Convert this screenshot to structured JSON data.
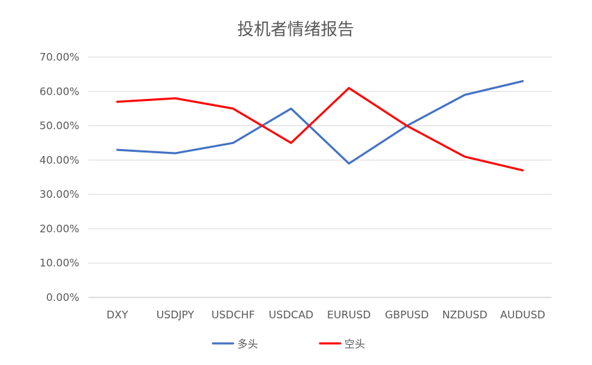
{
  "chart_data": {
    "type": "line",
    "title": "投机者情绪报告",
    "categories": [
      "DXY",
      "USDJPY",
      "USDCHF",
      "USDCAD",
      "EURUSD",
      "GBPUSD",
      "NZDUSD",
      "AUDUSD"
    ],
    "ylim": [
      0,
      0.7
    ],
    "yticks": [
      "0.00%",
      "10.00%",
      "20.00%",
      "30.00%",
      "40.00%",
      "50.00%",
      "60.00%",
      "70.00%"
    ],
    "grid": true,
    "legend_position": "bottom",
    "series": [
      {
        "name": "多头",
        "color": "#4472C4",
        "values": [
          0.43,
          0.42,
          0.45,
          0.55,
          0.39,
          0.5,
          0.59,
          0.63
        ]
      },
      {
        "name": "空头",
        "color": "#FF0000",
        "values": [
          0.57,
          0.58,
          0.55,
          0.45,
          0.61,
          0.5,
          0.41,
          0.37
        ]
      }
    ]
  }
}
